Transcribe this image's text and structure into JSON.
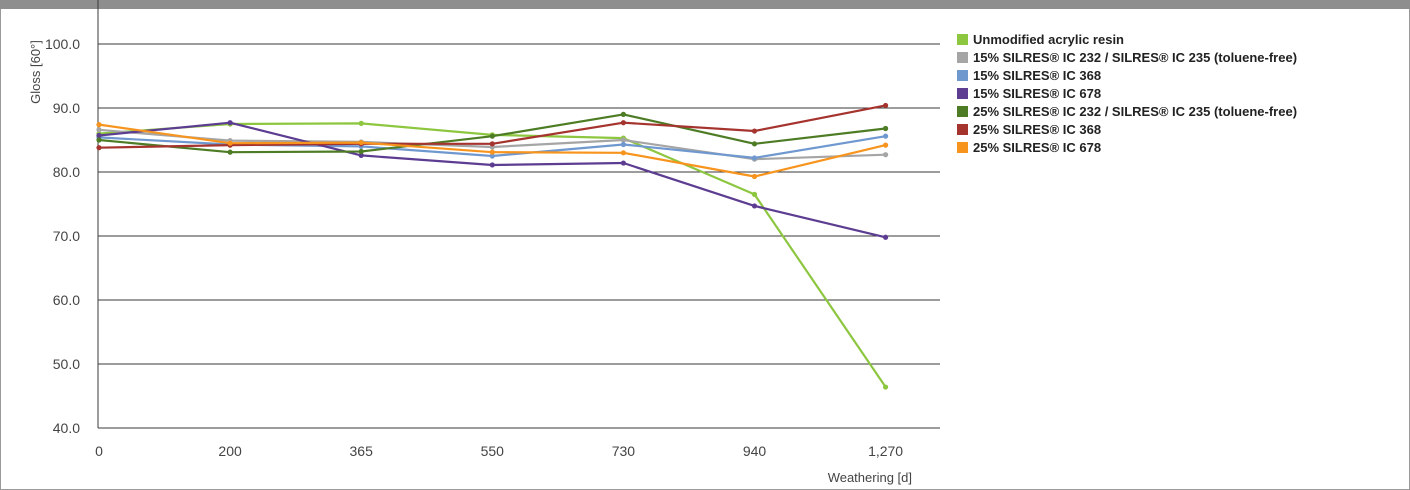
{
  "header": {
    "title": ""
  },
  "chart_data": {
    "type": "line",
    "xlabel": "Weathering [d]",
    "ylabel": "Gloss [60°]",
    "ylim": [
      40,
      100
    ],
    "yticks": [
      "40.0",
      "50.0",
      "60.0",
      "70.0",
      "80.0",
      "90.0",
      "100.0"
    ],
    "categories": [
      "0",
      "200",
      "365",
      "550",
      "730",
      "940",
      "1,270"
    ],
    "grid": true,
    "legend_position": "right",
    "series": [
      {
        "name": "Unmodified acrylic resin",
        "color": "#8dc63f",
        "values": [
          86.0,
          87.5,
          87.6,
          85.8,
          85.3,
          76.5,
          46.4
        ]
      },
      {
        "name": "15% SILRES® IC 232 / SILRES® IC 235 (toluene-free)",
        "color": "#a5a5a5",
        "values": [
          86.6,
          84.9,
          84.7,
          83.9,
          85.0,
          82.0,
          82.7
        ]
      },
      {
        "name": "15% SILRES® IC 368",
        "color": "#6f98cf",
        "values": [
          85.4,
          84.3,
          84.0,
          82.5,
          84.3,
          82.2,
          85.6
        ]
      },
      {
        "name": "15% SILRES® IC 678",
        "color": "#5c3d91",
        "values": [
          85.7,
          87.7,
          82.6,
          81.1,
          81.4,
          74.7,
          69.8
        ]
      },
      {
        "name": "25% SILRES® IC 232 / SILRES® IC 235 (toluene-free)",
        "color": "#4d7c24",
        "values": [
          85.0,
          83.1,
          83.2,
          85.6,
          89.0,
          84.4,
          86.8
        ]
      },
      {
        "name": "25% SILRES® IC 368",
        "color": "#a5332e",
        "values": [
          83.8,
          84.2,
          84.4,
          84.4,
          87.7,
          86.4,
          90.4
        ]
      },
      {
        "name": "25% SILRES® IC 678",
        "color": "#f7941d",
        "values": [
          87.4,
          84.5,
          84.6,
          83.1,
          83.0,
          79.3,
          84.2
        ]
      }
    ]
  }
}
